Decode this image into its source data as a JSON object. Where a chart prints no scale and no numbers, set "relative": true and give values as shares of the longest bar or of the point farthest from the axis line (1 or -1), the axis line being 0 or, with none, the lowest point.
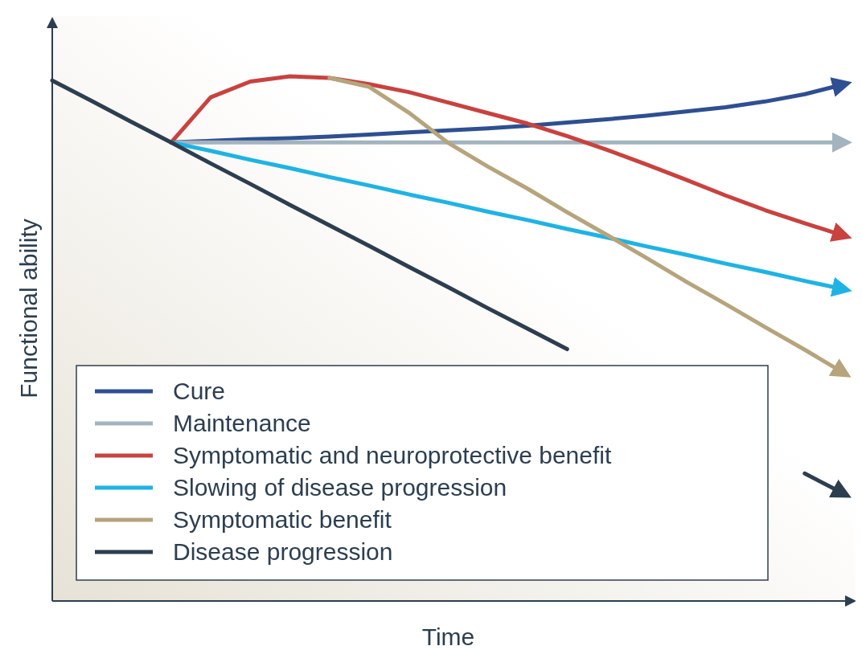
{
  "chart_data": {
    "type": "line",
    "relative": true,
    "xlabel": "Time",
    "ylabel": "Functional ability",
    "legend": "bottom left",
    "marker": "none",
    "line_style": "solid",
    "categories": [
      null,
      null,
      null,
      null,
      null,
      null,
      null,
      null,
      null,
      null,
      null,
      null,
      null,
      null,
      null,
      null,
      null,
      null,
      null,
      null,
      null
    ],
    "series": [
      {
        "name": "Cure",
        "color": "#2e4f91",
        "values": [
          null,
          null,
          null,
          0.874,
          0.877,
          0.88,
          0.882,
          0.885,
          0.889,
          0.893,
          0.897,
          0.901,
          0.906,
          0.912,
          0.918,
          0.925,
          0.933,
          0.941,
          0.952,
          0.966,
          0.985
        ]
      },
      {
        "name": "Maintenance",
        "color": "#a3b3c0",
        "values": [
          null,
          null,
          null,
          0.874,
          0.874,
          0.874,
          0.874,
          0.874,
          0.874,
          0.874,
          0.874,
          0.874,
          0.874,
          0.874,
          0.874,
          0.874,
          0.874,
          0.874,
          0.874,
          0.874,
          0.874
        ]
      },
      {
        "name": "Symptomatic and neuroprotective benefit",
        "color": "#c8423f",
        "values": [
          null,
          null,
          null,
          0.874,
          0.96,
          0.99,
          1.0,
          0.997,
          0.985,
          0.97,
          0.95,
          0.93,
          0.91,
          0.886,
          0.86,
          0.832,
          0.803,
          0.773,
          0.745,
          0.72,
          0.696
        ]
      },
      {
        "name": "Slowing of disease progression",
        "color": "#1fb3e3",
        "values": [
          null,
          null,
          null,
          0.874,
          0.858,
          0.841,
          0.825,
          0.808,
          0.792,
          0.775,
          0.759,
          0.742,
          0.726,
          0.709,
          0.693,
          0.676,
          0.66,
          0.643,
          0.627,
          0.61,
          0.594
        ]
      },
      {
        "name": "Symptomatic benefit",
        "color": "#b5a47c",
        "values": [
          null,
          null,
          null,
          null,
          null,
          null,
          null,
          0.997,
          0.98,
          0.931,
          0.873,
          0.828,
          0.786,
          0.741,
          0.698,
          0.654,
          0.609,
          0.566,
          0.522,
          0.479,
          0.434
        ]
      },
      {
        "name": "Disease progression",
        "color": "#2c3e4f",
        "values": [
          0.992,
          0.953,
          0.913,
          0.874,
          0.834,
          0.795,
          0.755,
          0.716,
          0.677,
          0.637,
          0.598,
          0.558,
          0.519,
          0.48,
          null,
          null,
          null,
          null,
          null,
          0.243,
          0.204
        ]
      }
    ]
  }
}
